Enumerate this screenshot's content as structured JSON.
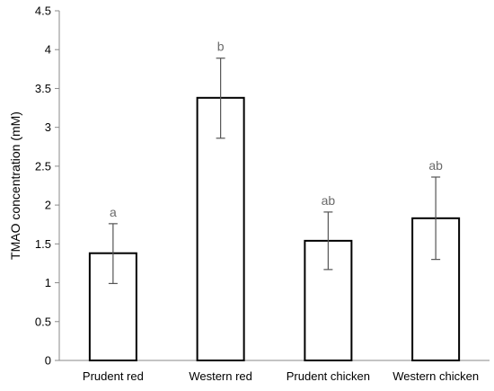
{
  "chart_data": {
    "type": "bar",
    "categories": [
      "Prudent red",
      "Western red",
      "Prudent chicken",
      "Western chicken"
    ],
    "values": [
      1.38,
      3.38,
      1.54,
      1.83
    ],
    "error_low": [
      0.99,
      2.86,
      1.17,
      1.3
    ],
    "error_high": [
      1.76,
      3.89,
      1.91,
      2.36
    ],
    "significance_labels": [
      "a",
      "b",
      "ab",
      "ab"
    ],
    "title": "",
    "xlabel": "",
    "ylabel": "TMAO concentration (mM)",
    "ylim": [
      0,
      4.5
    ],
    "yticks": [
      "0",
      "0.5",
      "1",
      "1.5",
      "2",
      "2.5",
      "3",
      "3.5",
      "4",
      "4.5"
    ],
    "grid": false,
    "legend": "none",
    "colors": {
      "bar_fill": "#ffffff",
      "bar_stroke": "#000000",
      "error_bar": "#555555",
      "sig_text": "#6b6b6b",
      "axis": "#8a8a8a"
    }
  }
}
